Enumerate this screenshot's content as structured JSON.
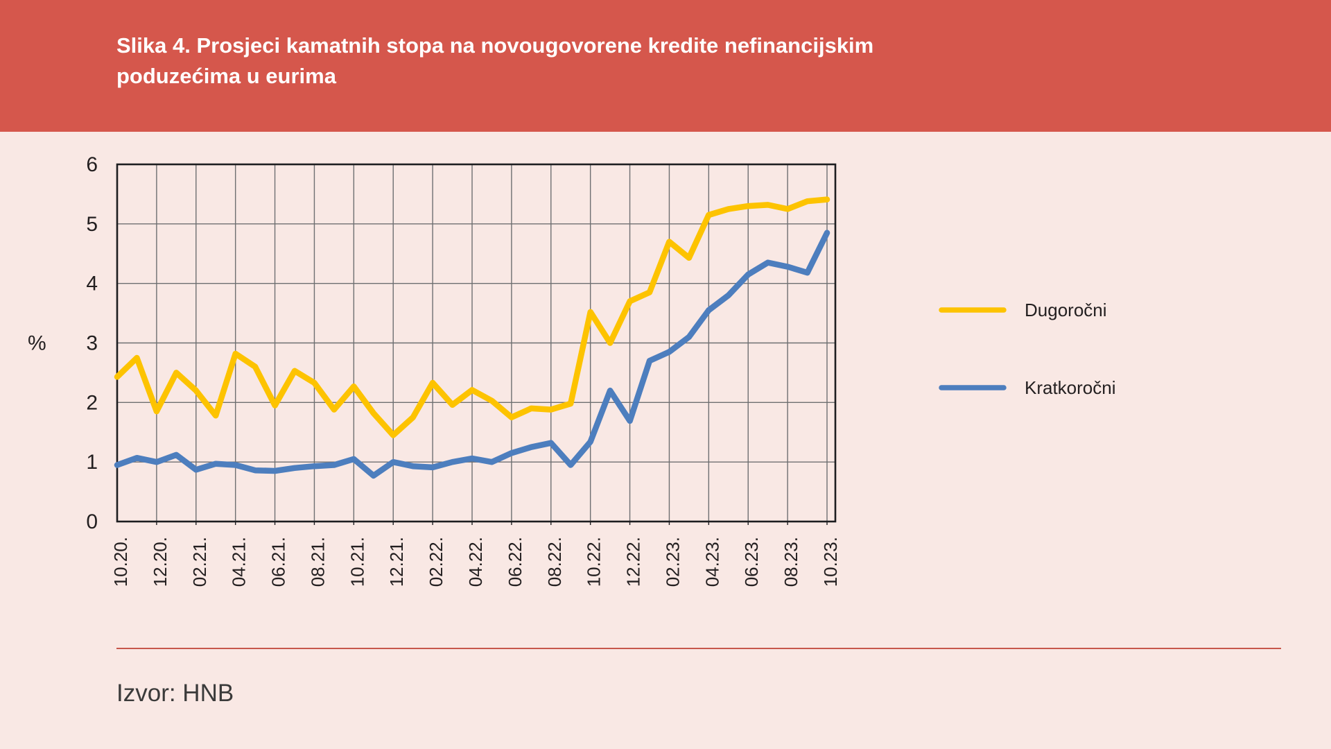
{
  "header": {
    "title": "Slika 4. Prosjeci kamatnih stopa na novougovorene kredite nefinancijskim poduzećima u eurima"
  },
  "footer": {
    "source": "Izvor: HNB"
  },
  "colors": {
    "header_bg": "#d5574c",
    "page_bg": "#f9e8e4",
    "axis": "#1d1d20",
    "grid": "#6e6f71",
    "tick_text": "#231f20",
    "divider": "#c7564b",
    "footer_text": "#3a3a3a",
    "series_dugorocni": "#fdc300",
    "series_kratkorocni": "#4d7ebe"
  },
  "chart_data": {
    "type": "line",
    "title": "Slika 4. Prosjeci kamatnih stopa na novougovorene kredite nefinancijskim poduzećima u eurima",
    "xlabel": "",
    "ylabel": "%",
    "ylim": [
      0,
      6
    ],
    "yticks": [
      0,
      1,
      2,
      3,
      4,
      5,
      6
    ],
    "grid": true,
    "legend_position": "right",
    "x_tick_labels": [
      "10.20.",
      "12.20.",
      "02.21.",
      "04.21.",
      "06.21.",
      "08.21.",
      "10.21.",
      "12.21.",
      "02.22.",
      "04.22.",
      "06.22.",
      "08.22.",
      "10.22.",
      "12.22.",
      "02.23.",
      "04.23.",
      "06.23.",
      "08.23.",
      "10.23."
    ],
    "x_months": [
      "10.20.",
      "11.20.",
      "12.20.",
      "01.21.",
      "02.21.",
      "03.21.",
      "04.21.",
      "05.21.",
      "06.21.",
      "07.21.",
      "08.21.",
      "09.21.",
      "10.21.",
      "11.21.",
      "12.21.",
      "01.22.",
      "02.22.",
      "03.22.",
      "04.22.",
      "05.22.",
      "06.22.",
      "07.22.",
      "08.22.",
      "09.22.",
      "10.22.",
      "11.22.",
      "12.22.",
      "01.23.",
      "02.23.",
      "03.23.",
      "04.23.",
      "05.23.",
      "06.23.",
      "07.23.",
      "08.23.",
      "09.23.",
      "10.23."
    ],
    "series": [
      {
        "name": "Dugoročni",
        "color": "#fdc300",
        "values": [
          2.43,
          2.75,
          1.85,
          2.5,
          2.2,
          1.78,
          2.82,
          2.6,
          1.95,
          2.53,
          2.33,
          1.88,
          2.27,
          1.82,
          1.45,
          1.75,
          2.33,
          1.96,
          2.21,
          2.03,
          1.75,
          1.9,
          1.88,
          1.98,
          3.52,
          3.0,
          3.7,
          3.85,
          4.7,
          4.43,
          5.15,
          5.25,
          5.3,
          5.32,
          5.25,
          5.38,
          5.41
        ]
      },
      {
        "name": "Kratkoročni",
        "color": "#4d7ebe",
        "values": [
          0.95,
          1.07,
          1.0,
          1.12,
          0.87,
          0.97,
          0.95,
          0.86,
          0.85,
          0.9,
          0.93,
          0.95,
          1.05,
          0.77,
          1.0,
          0.93,
          0.91,
          1.0,
          1.06,
          1.0,
          1.15,
          1.25,
          1.32,
          0.95,
          1.34,
          2.2,
          1.69,
          2.7,
          2.85,
          3.1,
          3.55,
          3.8,
          4.15,
          4.35,
          4.28,
          4.18,
          4.85
        ]
      }
    ]
  }
}
